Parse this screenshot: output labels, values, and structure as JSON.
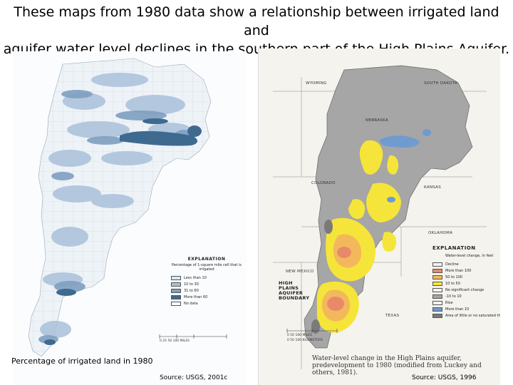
{
  "title": {
    "line1": "These maps from 1980 data show a relationship between irrigated land and",
    "line2": "aquifer water level declines in the southern part of the High Plains Aquifer."
  },
  "left_map": {
    "caption": "Percentage of irrigated land in 1980",
    "source": "Source: USGS, 2001c",
    "legend": {
      "heading": "EXPLANATION",
      "subheading": "Percentage of 1-square mile cell that is irrigated",
      "items": [
        {
          "label": "Less than 10",
          "color": "#dbe6f1"
        },
        {
          "label": "10 to 30",
          "color": "#a9c1da"
        },
        {
          "label": "31 to 60",
          "color": "#7f9fc0"
        },
        {
          "label": "More than 60",
          "color": "#3f6a8f"
        },
        {
          "label": "No data",
          "color": "#ffffff"
        }
      ]
    },
    "scale_label": "0 25 50 100 MILES"
  },
  "right_map": {
    "caption": "Water-level change in the High Plains aquifer, predevelopment to 1980 (modified from Luckey and others, 1981).",
    "source": "Source: USGS, 1996",
    "state_labels": {
      "wyoming": "WYOMING",
      "south_dakota": "SOUTH DAKOTA",
      "nebraska": "NEBRASKA",
      "colorado": "COLORADO",
      "kansas": "KANSAS",
      "oklahoma": "OKLAHOMA",
      "new_mexico": "NEW MEXICO",
      "texas": "TEXAS"
    },
    "boundary_label": "HIGH PLAINS AQUIFER BOUNDARY",
    "legend": {
      "heading": "EXPLANATION",
      "subheading": "Water-level change, in feet",
      "items": [
        {
          "label": "Decline",
          "color": "#f4f3ee"
        },
        {
          "label": "More than 100",
          "color": "#e88a6a"
        },
        {
          "label": "50 to 100",
          "color": "#f3b85c"
        },
        {
          "label": "10 to 50",
          "color": "#f5e53a"
        },
        {
          "label": "No significant change",
          "color": "#f4f3ee"
        },
        {
          "label": "-10 to 10",
          "color": "#a6a6a6"
        },
        {
          "label": "Rise",
          "color": "#f4f3ee"
        },
        {
          "label": "More than 10",
          "color": "#6f9bd0"
        },
        {
          "label": "Area of little or no saturated thickness",
          "color": "#7a7a7a"
        }
      ]
    },
    "scale_label": "0 50 100 MILES",
    "scale_label_km": "0 50 100 KILOMETERS"
  }
}
